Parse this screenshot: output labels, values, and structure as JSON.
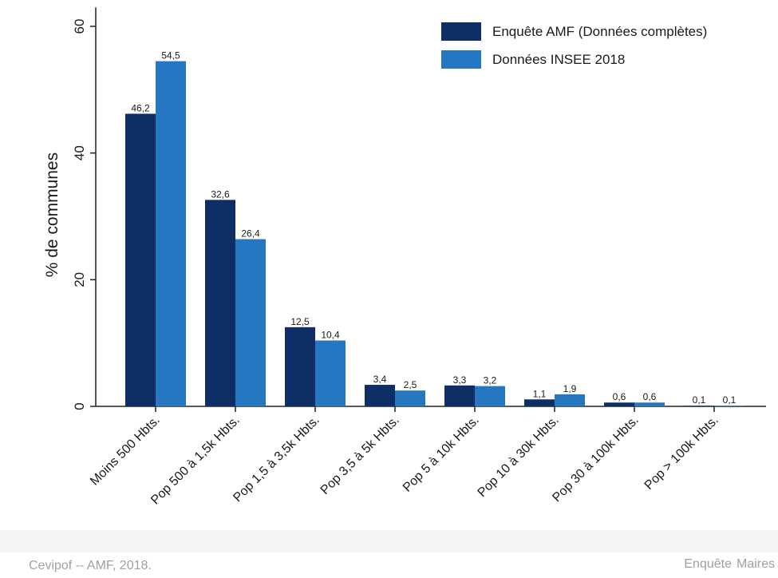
{
  "colors": {
    "series_1": "#0d2f66",
    "series_2": "#2677c2",
    "axis": "#222222",
    "text": "#1a1a1a"
  },
  "chart_data": {
    "type": "bar",
    "title": "",
    "xlabel": "",
    "ylabel": "% de communes",
    "ylim": [
      0,
      63
    ],
    "yticks": [
      0,
      20,
      40,
      60
    ],
    "grid": false,
    "legend_position": "top-right",
    "categories": [
      "Moins 500 Hbts.",
      "Pop 500 à 1,5k Hbts.",
      "Pop 1,5 à 3,5k Hbts.",
      "Pop 3,5 à 5k Hbts.",
      "Pop 5 à 10k Hbts.",
      "Pop 10 à 30k Hbts.",
      "Pop 30 à 100k Hbts.",
      "Pop > 100k Hbts."
    ],
    "series": [
      {
        "name": "Enquête AMF (Données complètes)",
        "values": [
          46.2,
          32.6,
          12.5,
          3.4,
          3.3,
          1.1,
          0.6,
          0.1
        ],
        "labels": [
          "46,2",
          "32,6",
          "12,5",
          "3,4",
          "3,3",
          "1,1",
          "0,6",
          "0,1"
        ]
      },
      {
        "name": "Données INSEE 2018",
        "values": [
          54.5,
          26.4,
          10.4,
          2.5,
          3.2,
          1.9,
          0.6,
          0.1
        ],
        "labels": [
          "54,5",
          "26,4",
          "10,4",
          "2,5",
          "3,2",
          "1,9",
          "0,6",
          "0,1"
        ]
      }
    ]
  },
  "footer": {
    "source": "Cevipof -- AMF, 2018.",
    "right_word_1": "Enquête",
    "right_word_2": "Maires"
  }
}
